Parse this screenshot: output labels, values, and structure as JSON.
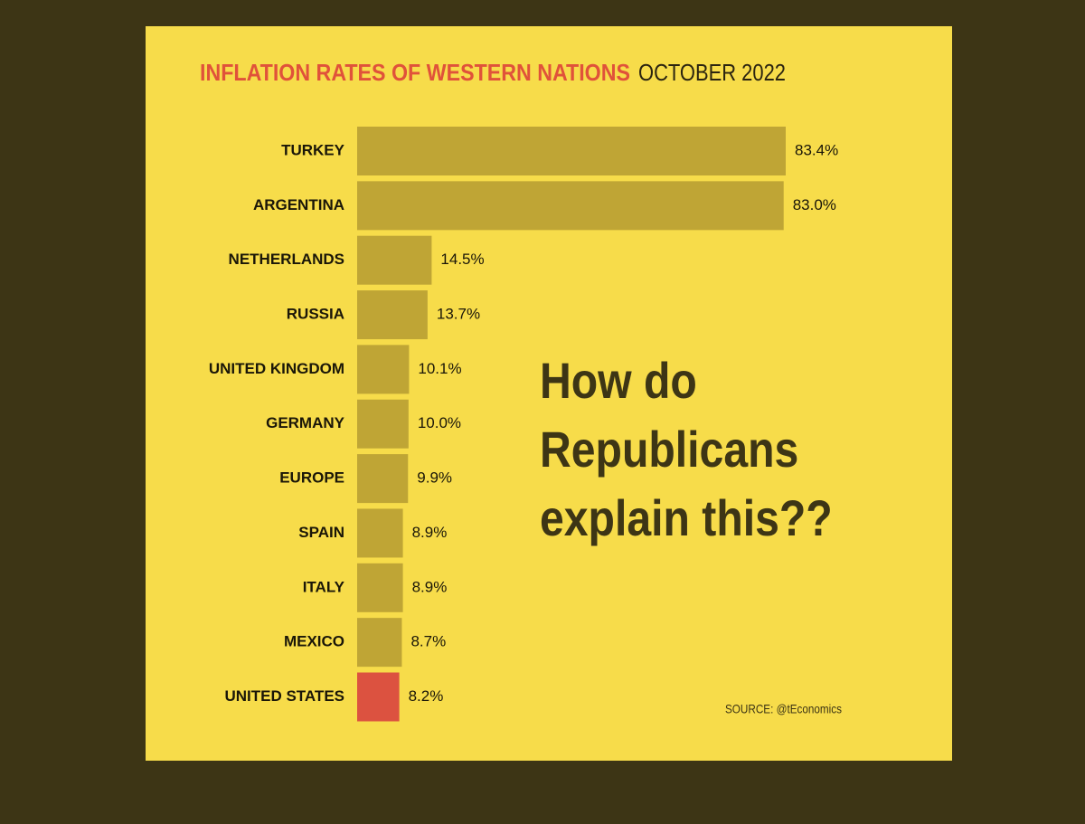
{
  "chart_data": {
    "type": "hbar",
    "title": "INFLATION RATES OF WESTERN NATIONS",
    "subtitle": "OCTOBER 2022",
    "categories": [
      "TURKEY",
      "ARGENTINA",
      "NETHERLANDS",
      "RUSSIA",
      "UNITED KINGDOM",
      "GERMANY",
      "EUROPE",
      "SPAIN",
      "ITALY",
      "MEXICO",
      "UNITED STATES"
    ],
    "values": [
      83.4,
      83.0,
      14.5,
      13.7,
      10.1,
      10.0,
      9.9,
      8.9,
      8.9,
      8.7,
      8.2
    ],
    "value_labels": [
      "83.4%",
      "83.0%",
      "14.5%",
      "13.7%",
      "10.1%",
      "10.0%",
      "9.9%",
      "8.9%",
      "8.9%",
      "8.7%",
      "8.2%"
    ],
    "colors": [
      "#bfa535",
      "#bfa535",
      "#bfa535",
      "#bfa535",
      "#bfa535",
      "#bfa535",
      "#bfa535",
      "#bfa535",
      "#bfa535",
      "#bfa535",
      "#dc5240"
    ],
    "annotation": [
      "How do",
      "Republicans",
      "explain this??"
    ],
    "source": "SOURCE: @tEconomics"
  }
}
